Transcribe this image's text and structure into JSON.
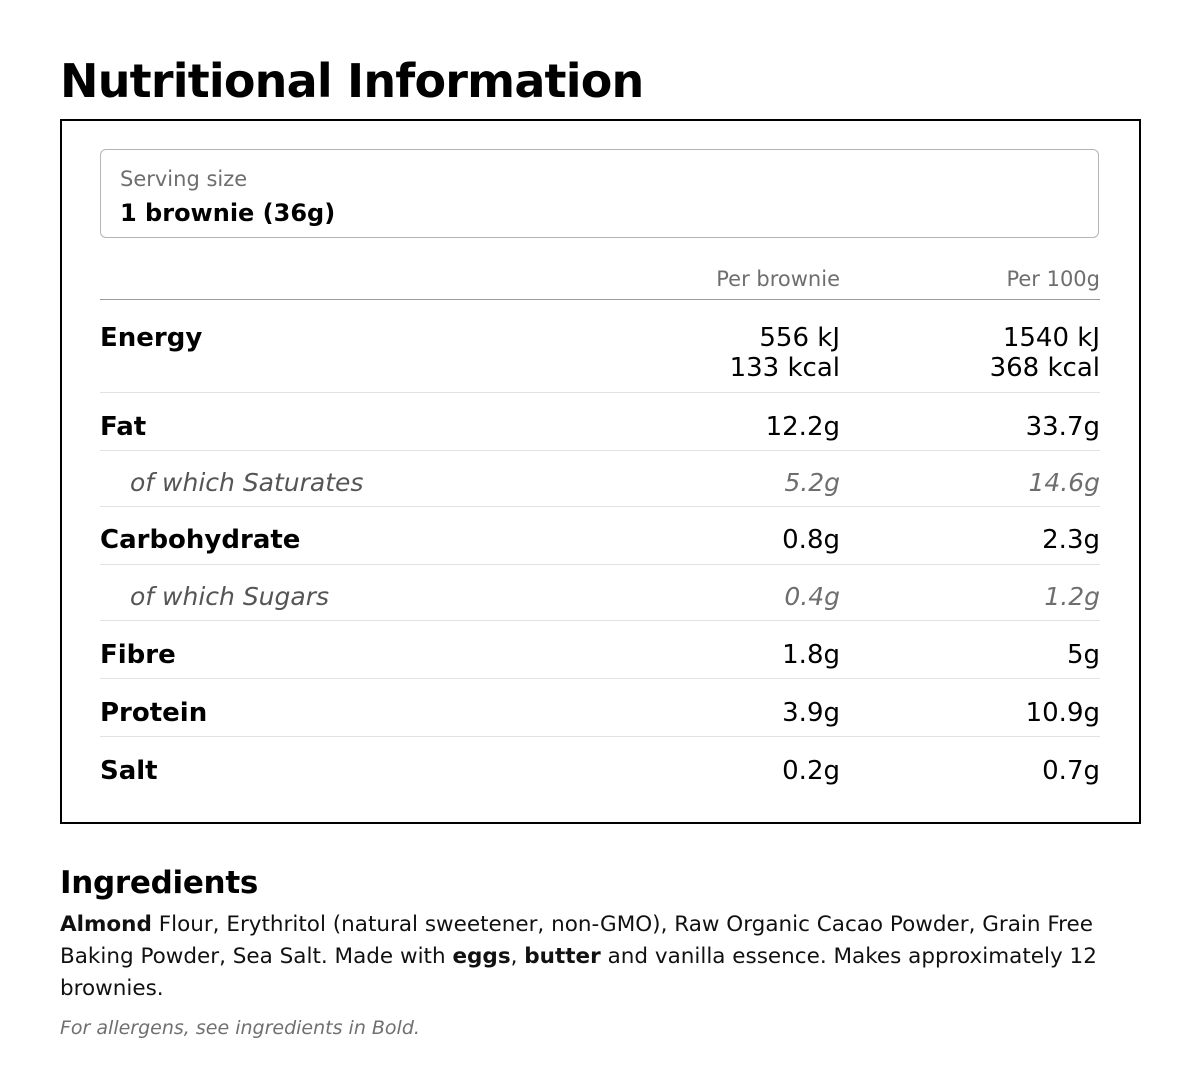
{
  "title": "Nutritional Information",
  "serving": {
    "label": "Serving size",
    "value": "1 brownie (36g)"
  },
  "columns": {
    "per_serving": "Per brownie",
    "per_100g": "Per 100g"
  },
  "nutrients": {
    "energy": {
      "name": "Energy",
      "per_serving_kj": "556 kJ",
      "per_serving_kcal": "133 kcal",
      "per_100g_kj": "1540 kJ",
      "per_100g_kcal": "368 kcal"
    },
    "fat": {
      "name": "Fat",
      "per_serving": "12.2g",
      "per_100g": "33.7g"
    },
    "saturates": {
      "name": "of which Saturates",
      "per_serving": "5.2g",
      "per_100g": "14.6g"
    },
    "carbohydrate": {
      "name": "Carbohydrate",
      "per_serving": "0.8g",
      "per_100g": "2.3g"
    },
    "sugars": {
      "name": "of which Sugars",
      "per_serving": "0.4g",
      "per_100g": "1.2g"
    },
    "fibre": {
      "name": "Fibre",
      "per_serving": "1.8g",
      "per_100g": "5g"
    },
    "protein": {
      "name": "Protein",
      "per_serving": "3.9g",
      "per_100g": "10.9g"
    },
    "salt": {
      "name": "Salt",
      "per_serving": "0.2g",
      "per_100g": "0.7g"
    }
  },
  "ingredients": {
    "title": "Ingredients",
    "allergen_1": "Almond",
    "text_1": " Flour, Erythritol (natural sweetener, non-GMO), Raw Organic Cacao Powder, Grain Free Baking Powder, Sea Salt. Made with ",
    "allergen_2": "eggs",
    "sep": ", ",
    "allergen_3": "butter",
    "text_2": " and vanilla essence. Makes approximately 12 brownies.",
    "allergen_note": "For allergens, see ingredients in Bold."
  }
}
